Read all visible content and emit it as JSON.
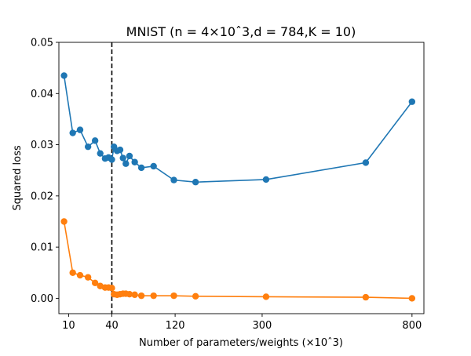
{
  "chart_data": {
    "type": "line",
    "title": "MNIST (n = 4×10ˆ3,d = 784,K = 10)",
    "xlabel": "Number of parameters/weights (×10ˆ3)",
    "ylabel": "Squared loss",
    "x_scale": "sqrt",
    "xlim": [
      6,
      850
    ],
    "ylim": [
      -0.003,
      0.05
    ],
    "x_ticks": [
      10,
      40,
      120,
      300,
      800
    ],
    "y_ticks": [
      0.0,
      0.01,
      0.02,
      0.03,
      0.04,
      0.05
    ],
    "y_tick_labels": [
      "0.00",
      "0.01",
      "0.02",
      "0.03",
      "0.04",
      "0.05"
    ],
    "grid": false,
    "legend": "none",
    "vline": {
      "x": 40,
      "style": "dashed",
      "color": "#000000"
    },
    "series": [
      {
        "color": "#1f77b4",
        "x": [
          8,
          12,
          16,
          21,
          26,
          30,
          34,
          37,
          40,
          42,
          45,
          48,
          51,
          54,
          58,
          64,
          72,
          88,
          118,
          155,
          310,
          620,
          800
        ],
        "y": [
          0.0435,
          0.0323,
          0.0329,
          0.0296,
          0.0308,
          0.0283,
          0.0273,
          0.0275,
          0.0271,
          0.0296,
          0.0288,
          0.029,
          0.0274,
          0.0263,
          0.0278,
          0.0266,
          0.0255,
          0.0258,
          0.0231,
          0.0227,
          0.0232,
          0.0265,
          0.0384
        ]
      },
      {
        "color": "#ff7f0e",
        "x": [
          8,
          12,
          16,
          21,
          26,
          30,
          34,
          37,
          40,
          42,
          45,
          48,
          51,
          54,
          58,
          64,
          72,
          88,
          118,
          155,
          310,
          620,
          800
        ],
        "y": [
          0.015,
          0.005,
          0.0045,
          0.0041,
          0.003,
          0.0024,
          0.0021,
          0.0021,
          0.002,
          0.0008,
          0.0007,
          0.0008,
          0.0009,
          0.0009,
          0.0008,
          0.0007,
          0.0005,
          0.0005,
          0.0005,
          0.0004,
          0.0003,
          0.0002,
          0.0
        ]
      }
    ]
  }
}
